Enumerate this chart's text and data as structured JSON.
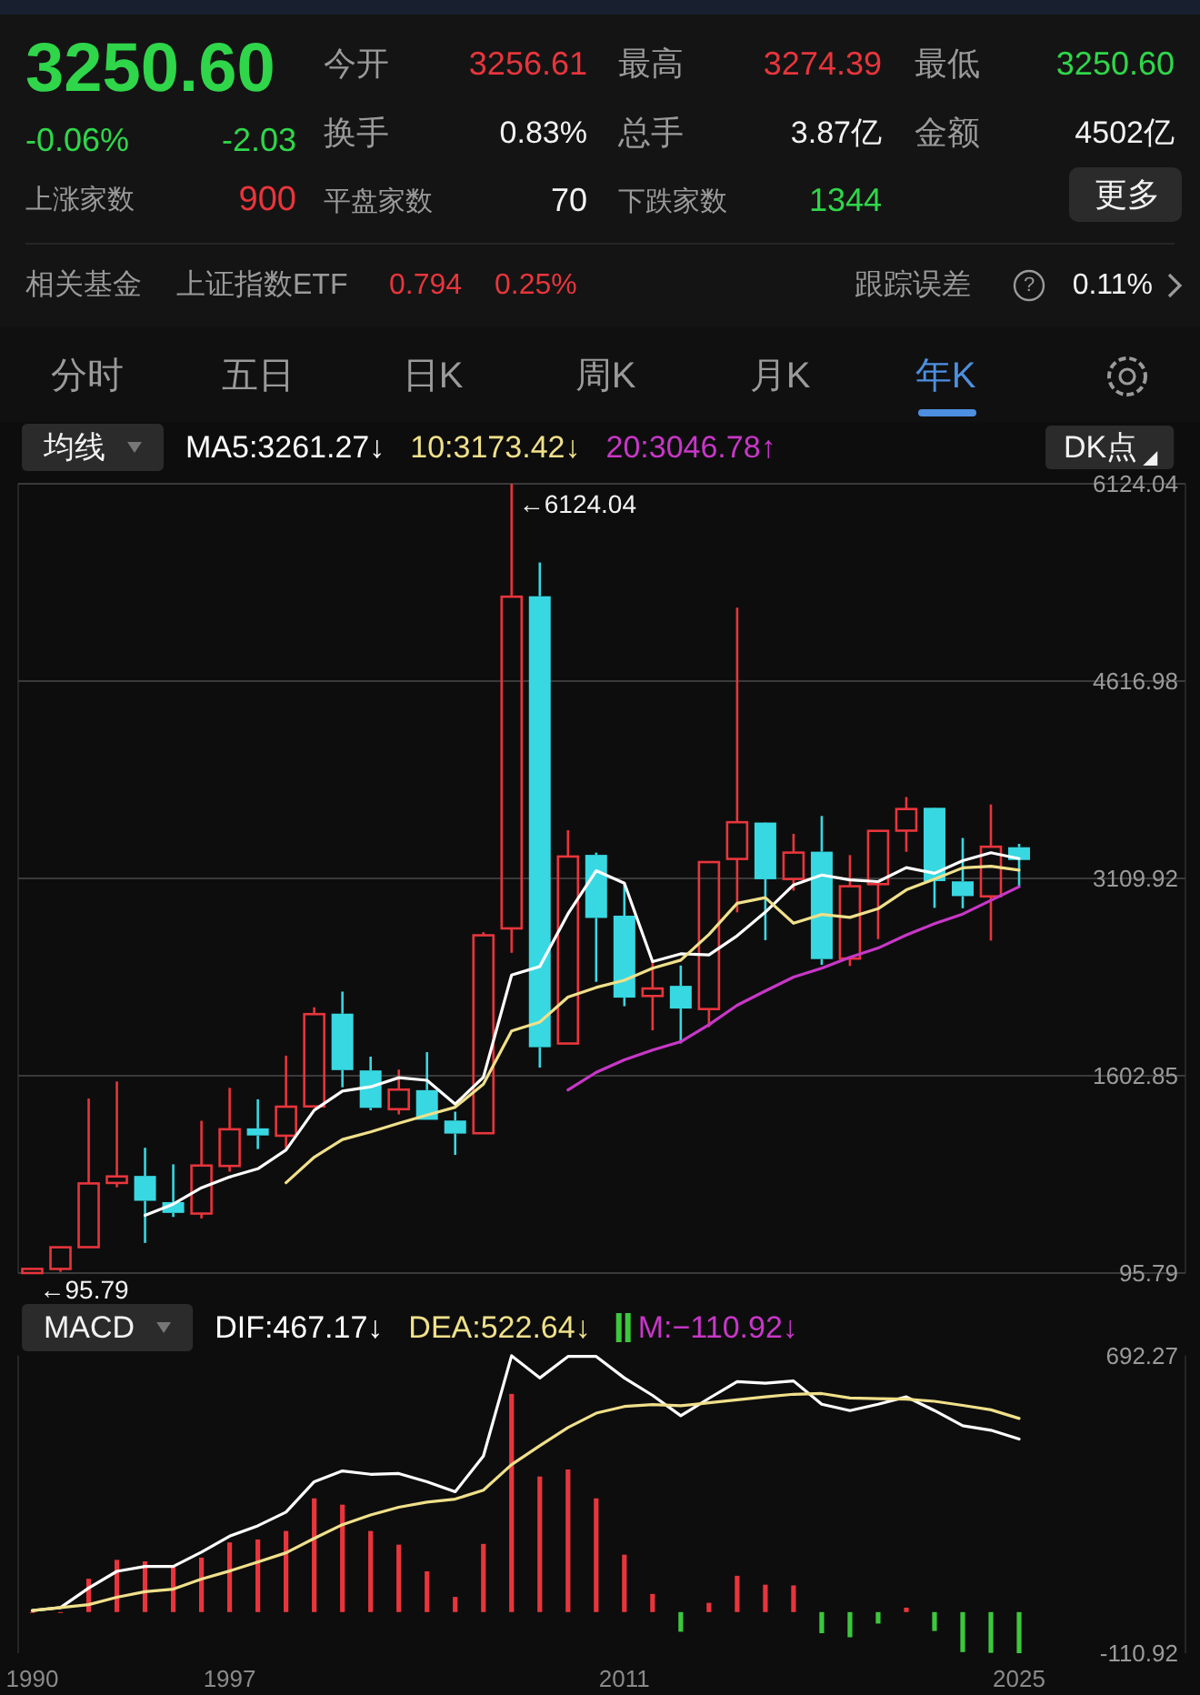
{
  "chart_data": [
    {
      "type": "other",
      "annotations": [
        "3250.60",
        "-0.06%",
        "-2.03",
        "上涨家数",
        "900",
        "今开",
        "3256.61",
        "换手",
        "0.83%",
        "平盘家数",
        "70",
        "最高",
        "3274.39",
        "总手",
        "3.87亿",
        "下跌家数",
        "1344",
        "最低",
        "3250.60",
        "金额",
        "4502亿",
        "更多",
        "相关基金",
        "上证指数ETF",
        "0.794",
        "0.25%",
        "跟踪误差",
        "?",
        "0.11%",
        "分时",
        "五日",
        "日K",
        "周K",
        "月K",
        "年K"
      ]
    },
    {
      "type": "candlestick",
      "legend_title": "均线",
      "legend": "top left",
      "grid": "y",
      "tick_labels": "y",
      "xlim": [
        1989.5,
        2030.9
      ],
      "ylim": [
        95.79,
        6124.04
      ],
      "yticks": [
        95.79,
        1602.85,
        3109.92,
        4616.98,
        6124.04
      ],
      "x": [
        1990,
        1991,
        1992,
        1993,
        1994,
        1995,
        1996,
        1997,
        1998,
        1999,
        2000,
        2001,
        2002,
        2003,
        2004,
        2005,
        2006,
        2007,
        2008,
        2009,
        2010,
        2011,
        2012,
        2013,
        2014,
        2015,
        2016,
        2017,
        2018,
        2019,
        2020,
        2021,
        2022,
        2023,
        2024,
        2025
      ],
      "ohlc": [
        [
          96.05,
          127.61,
          95.79,
          127.61
        ],
        [
          127.61,
          292.75,
          104.96,
          292.75
        ],
        [
          293.74,
          1429.01,
          292.76,
          780.39
        ],
        [
          784.13,
          1558.95,
          750.46,
          833.8
        ],
        [
          837.7,
          1052.94,
          325.89,
          647.87
        ],
        [
          637.72,
          926.41,
          524.43,
          555.29
        ],
        [
          550.26,
          1258.69,
          512.83,
          917.02
        ],
        [
          914.06,
          1510.18,
          870.18,
          1194.1
        ],
        [
          1200.95,
          1422.98,
          1043.02,
          1146.7
        ],
        [
          1144.89,
          1756.18,
          1047.83,
          1366.58
        ],
        [
          1368.69,
          2125.72,
          1361.21,
          2073.48
        ],
        [
          2077.07,
          2245.43,
          1514.86,
          1645.97
        ],
        [
          1643.48,
          1748.89,
          1339.2,
          1357.65
        ],
        [
          1347.43,
          1649.6,
          1307.4,
          1497.04
        ],
        [
          1492.72,
          1783.01,
          1259.43,
          1266.5
        ],
        [
          1260.78,
          1328.53,
          998.23,
          1161.06
        ],
        [
          1163.88,
          2698.9,
          1161.91,
          2675.47
        ],
        [
          2728.19,
          6124.04,
          2541.52,
          5261.56
        ],
        [
          5265.0,
          5522.78,
          1664.93,
          1820.81
        ],
        [
          1849.02,
          3478.01,
          1844.09,
          3277.14
        ],
        [
          3289.75,
          3306.75,
          2319.74,
          2808.08
        ],
        [
          2825.33,
          3067.46,
          2134.02,
          2199.42
        ],
        [
          2212.0,
          2478.38,
          1949.46,
          2269.13
        ],
        [
          2289.51,
          2444.8,
          1849.65,
          2115.98
        ],
        [
          2112.13,
          3239.36,
          1974.38,
          3234.68
        ],
        [
          3258.63,
          5178.19,
          2850.71,
          3539.18
        ],
        [
          3536.59,
          3538.69,
          2638.3,
          3103.64
        ],
        [
          3105.31,
          3450.49,
          3016.53,
          3307.17
        ],
        [
          3314.03,
          3587.03,
          2449.2,
          2493.9
        ],
        [
          2497.88,
          3288.45,
          2440.91,
          3050.12
        ],
        [
          3066.34,
          3474.92,
          2646.8,
          3473.07
        ],
        [
          3474.68,
          3731.69,
          3312.72,
          3639.78
        ],
        [
          3649.15,
          3651.89,
          2885.09,
          3089.26
        ],
        [
          3087.51,
          3418.95,
          2882.02,
          2974.93
        ],
        [
          2972.78,
          3674.4,
          2635.09,
          3351.76
        ],
        [
          3347.94,
          3373.95,
          3040.69,
          3250.6
        ]
      ],
      "colors": [
        "#e8353c",
        "#e8353c",
        "#e8353c",
        "#e8353c",
        "#38d8e2",
        "#38d8e2",
        "#e8353c",
        "#e8353c",
        "#38d8e2",
        "#e8353c",
        "#e8353c",
        "#38d8e2",
        "#38d8e2",
        "#e8353c",
        "#38d8e2",
        "#38d8e2",
        "#e8353c",
        "#e8353c",
        "#38d8e2",
        "#e8353c",
        "#38d8e2",
        "#38d8e2",
        "#e8353c",
        "#38d8e2",
        "#e8353c",
        "#e8353c",
        "#38d8e2",
        "#e8353c",
        "#38d8e2",
        "#e8353c",
        "#e8353c",
        "#e8353c",
        "#38d8e2",
        "#38d8e2",
        "#e8353c",
        "#38d8e2"
      ],
      "series": [
        {
          "type": "line",
          "name": "MA5:3261.27↓",
          "color": "#ffffff",
          "values": [
            null,
            null,
            null,
            null,
            536.5,
            622.0,
            746.9,
            829.6,
            892.2,
            1035.9,
            1339.6,
            1485.4,
            1518.1,
            1588.1,
            1568.1,
            1385.6,
            1591.5,
            2372.3,
            2437.1,
            2839.2,
            3168.6,
            3073.4,
            2474.9,
            2534.0,
            2525.5,
            2671.7,
            2852.5,
            3060.1,
            3135.7,
            3098.8,
            3085.6,
            3192.8,
            3149.2,
            3245.4,
            3305.8,
            3261.27
          ]
        },
        {
          "type": "line",
          "name": "10:3173.42↓",
          "color": "#f0e08a",
          "values": [
            null,
            null,
            null,
            null,
            null,
            null,
            null,
            null,
            null,
            786.2,
            980.8,
            1116.1,
            1173.8,
            1240.2,
            1302.0,
            1362.6,
            1538.5,
            1945.2,
            2012.6,
            2203.7,
            2277.1,
            2332.5,
            2423.6,
            2485.5,
            2682.3,
            2920.1,
            2963.0,
            2767.5,
            2834.8,
            2812.1,
            2878.6,
            3022.7,
            3104.7,
            3190.6,
            3202.3,
            3173.42
          ]
        },
        {
          "type": "line",
          "name": "20:3046.78↑",
          "color": "#c837c8",
          "values": [
            null,
            null,
            null,
            null,
            null,
            null,
            null,
            null,
            null,
            null,
            null,
            null,
            null,
            null,
            null,
            null,
            null,
            null,
            null,
            1494.9,
            1629.0,
            1724.3,
            1798.7,
            1862.8,
            1992.2,
            2141.4,
            2250.7,
            2356.4,
            2423.7,
            2507.9,
            2577.9,
            2677.6,
            2764.1,
            2838.0,
            2942.3,
            3046.78
          ]
        }
      ],
      "annotations": [
        "DK点",
        {
          "text": "←6124.04",
          "x": 2007,
          "y": 6124.04
        },
        {
          "text": "←95.79",
          "x": 1990,
          "y": 95.79
        }
      ]
    },
    {
      "type": "bar",
      "legend_title": "MACD",
      "legend": "top",
      "xlim": [
        1989.5,
        2030.9
      ],
      "xticks": [
        1990,
        1997,
        2011,
        2025
      ],
      "ylim": [
        -110.92,
        692.27
      ],
      "yticks": [
        -110.92,
        692.27
      ],
      "x": [
        1990,
        1991,
        1992,
        1993,
        1994,
        1995,
        1996,
        1997,
        1998,
        1999,
        2000,
        2001,
        2002,
        2003,
        2004,
        2005,
        2006,
        2007,
        2008,
        2009,
        2010,
        2011,
        2012,
        2013,
        2014,
        2015,
        2016,
        2017,
        2018,
        2019,
        2020,
        2021,
        2022,
        2023,
        2024,
        2025
      ],
      "series": [
        {
          "type": "line",
          "name": "DIF:467.17↓",
          "color": "#ffffff",
          "values": [
            4,
            12,
            65,
            110,
            123,
            123,
            162,
            205,
            233,
            270,
            352,
            381,
            372,
            374,
            352,
            325,
            421,
            692,
            632,
            690,
            690,
            632,
            585,
            530,
            577,
            622,
            618,
            624,
            561,
            544,
            561,
            581,
            544,
            503,
            491,
            467.17
          ]
        },
        {
          "type": "line",
          "name": "DEA:522.64↓",
          "color": "#f0e08a",
          "values": [
            4,
            12,
            20,
            40,
            55,
            62,
            89,
            111,
            135,
            160,
            199,
            236,
            262,
            283,
            297,
            305,
            329,
            398,
            449,
            498,
            537,
            555,
            560,
            557,
            565,
            573,
            581,
            588,
            590,
            578,
            576,
            575,
            569,
            558,
            546,
            522.64
          ]
        },
        {
          "type": "bar",
          "name": "M:−110.92↓",
          "color": "#c837c8",
          "values": [
            0,
            0,
            90,
            141,
            137,
            123,
            147,
            188,
            196,
            219,
            307,
            290,
            219,
            182,
            110,
            41,
            184,
            589,
            366,
            385,
            307,
            155,
            49,
            -53,
            25,
            98,
            74,
            72,
            -57,
            -68,
            -31,
            12,
            -51,
            -108,
            -110,
            -110.92
          ],
          "colors": [
            "#e8353c",
            "#e8353c",
            "#e8353c",
            "#e8353c",
            "#e8353c",
            "#e8353c",
            "#e8353c",
            "#e8353c",
            "#e8353c",
            "#e8353c",
            "#e8353c",
            "#e8353c",
            "#e8353c",
            "#e8353c",
            "#e8353c",
            "#e8353c",
            "#e8353c",
            "#e8353c",
            "#e8353c",
            "#e8353c",
            "#e8353c",
            "#e8353c",
            "#e8353c",
            "#3cc83c",
            "#e8353c",
            "#e8353c",
            "#e8353c",
            "#e8353c",
            "#3cc83c",
            "#3cc83c",
            "#3cc83c",
            "#e8353c",
            "#3cc83c",
            "#3cc83c",
            "#3cc83c",
            "#3cc83c"
          ]
        }
      ]
    }
  ]
}
